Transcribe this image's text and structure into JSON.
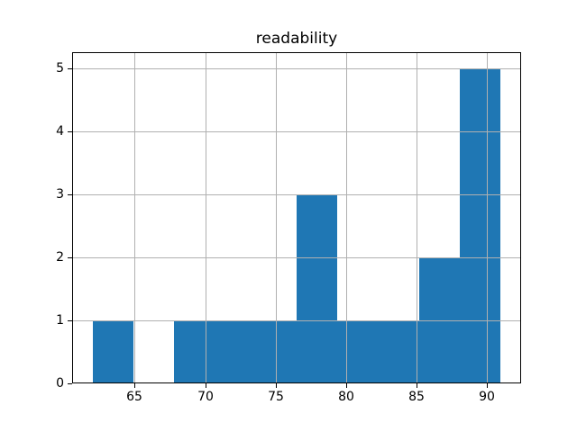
{
  "chart_data": {
    "type": "bar",
    "variant": "histogram",
    "title": "readability",
    "xlabel": "",
    "ylabel": "",
    "bin_edges": [
      62,
      64.9,
      67.8,
      70.7,
      73.6,
      76.5,
      79.4,
      82.3,
      85.2,
      88.1,
      91
    ],
    "counts": [
      1,
      0,
      1,
      1,
      1,
      3,
      1,
      1,
      2,
      5
    ],
    "xlim": [
      60.55,
      92.45
    ],
    "ylim": [
      0,
      5.25
    ],
    "x_ticks": [
      65,
      70,
      75,
      80,
      85,
      90
    ],
    "y_ticks": [
      0,
      1,
      2,
      3,
      4,
      5
    ],
    "grid": true,
    "legend": false,
    "bar_color": "#1f77b4",
    "grid_color": "#b0b0b0",
    "spine_color": "#000000",
    "background_color": "#ffffff"
  }
}
